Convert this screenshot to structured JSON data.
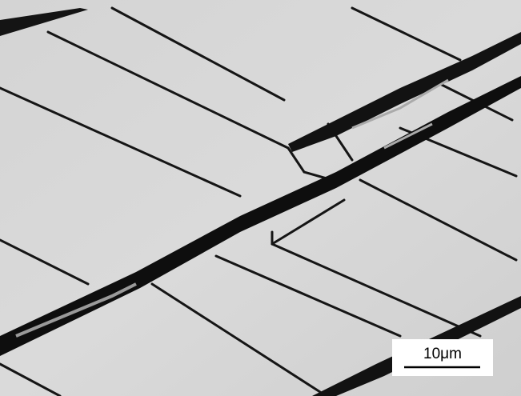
{
  "scale_bar": {
    "label": "10μm"
  }
}
